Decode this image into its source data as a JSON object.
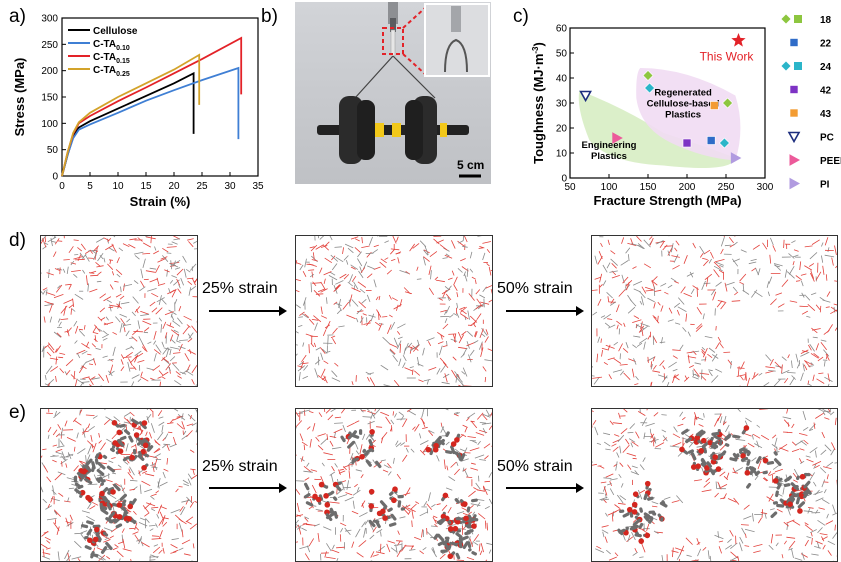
{
  "panel_labels": {
    "a": "a)",
    "b": "b)",
    "c": "c)",
    "d": "d)",
    "e": "e)"
  },
  "chart_data": [
    {
      "type": "line",
      "panel": "a",
      "xlabel": "Strain (%)",
      "ylabel": "Stress (MPa)",
      "xlim": [
        0,
        35
      ],
      "ylim": [
        0,
        300
      ],
      "xticks": [
        "0",
        "5",
        "10",
        "15",
        "20",
        "25",
        "30",
        "35"
      ],
      "yticks": [
        "0",
        "50",
        "100",
        "150",
        "200",
        "250",
        "300"
      ],
      "legend_position": "top-left",
      "series": [
        {
          "name": "Cellulose",
          "color": "#000000",
          "points": [
            [
              0,
              0
            ],
            [
              1,
              40
            ],
            [
              2,
              75
            ],
            [
              3,
              92
            ],
            [
              5,
              104
            ],
            [
              10,
              128
            ],
            [
              15,
              152
            ],
            [
              20,
              176
            ],
            [
              23.5,
              195
            ],
            [
              23.5,
              80
            ]
          ]
        },
        {
          "name": "C-TA",
          "subscript": "0.10",
          "color": "#3f7fd4",
          "points": [
            [
              0,
              0
            ],
            [
              1,
              40
            ],
            [
              2,
              72
            ],
            [
              3,
              88
            ],
            [
              5,
              98
            ],
            [
              10,
              120
            ],
            [
              15,
              143
            ],
            [
              20,
              163
            ],
            [
              25,
              182
            ],
            [
              31.5,
              205
            ],
            [
              31.5,
              70
            ]
          ]
        },
        {
          "name": "C-TA",
          "subscript": "0.15",
          "color": "#e32228",
          "points": [
            [
              0,
              0
            ],
            [
              1,
              45
            ],
            [
              2,
              80
            ],
            [
              3,
              100
            ],
            [
              5,
              114
            ],
            [
              10,
              142
            ],
            [
              15,
              168
            ],
            [
              20,
              195
            ],
            [
              25,
              222
            ],
            [
              32,
              262
            ],
            [
              32,
              155
            ]
          ]
        },
        {
          "name": "C-TA",
          "subscript": "0.25",
          "color": "#d3a32a",
          "points": [
            [
              0,
              0
            ],
            [
              1,
              45
            ],
            [
              2,
              82
            ],
            [
              3,
              102
            ],
            [
              5,
              120
            ],
            [
              10,
              150
            ],
            [
              15,
              176
            ],
            [
              20,
              202
            ],
            [
              24.5,
              230
            ],
            [
              24.5,
              135
            ]
          ]
        }
      ]
    },
    {
      "type": "scatter",
      "panel": "c",
      "xlabel": "Fracture Strength (MPa)",
      "ylabel": "Toughness (MJ·m",
      "ylabel_sup": "-3",
      "ylabel_end": ")",
      "xlim": [
        50,
        300
      ],
      "ylim": [
        0,
        60
      ],
      "xticks": [
        "50",
        "100",
        "150",
        "200",
        "250",
        "300"
      ],
      "yticks": [
        "0",
        "10",
        "20",
        "30",
        "40",
        "50",
        "60"
      ],
      "region_labels": [
        {
          "lines": [
            "Regenerated",
            "Cellulose-based",
            "Plastics"
          ]
        },
        {
          "lines": [
            "Engineering",
            "Plastics"
          ]
        }
      ],
      "highlight": {
        "label": "This Work",
        "x": 266,
        "y": 55,
        "color": "#e32228"
      },
      "points": [
        {
          "x": 150,
          "y": 41,
          "group": "18"
        },
        {
          "x": 252,
          "y": 30,
          "group": "18"
        },
        {
          "x": 152,
          "y": 36,
          "group": "24"
        },
        {
          "x": 248,
          "y": 14,
          "group": "24"
        },
        {
          "x": 231,
          "y": 15,
          "group": "22"
        },
        {
          "x": 200,
          "y": 14,
          "group": "42"
        },
        {
          "x": 235,
          "y": 29,
          "group": "43"
        },
        {
          "x": 70,
          "y": 33,
          "group": "PC"
        },
        {
          "x": 110,
          "y": 16,
          "group": "PEEK"
        },
        {
          "x": 262,
          "y": 8,
          "group": "PI"
        }
      ],
      "legend": [
        {
          "label": "18",
          "icon": "diamond-square-green"
        },
        {
          "label": "22",
          "icon": "square-blue"
        },
        {
          "label": "24",
          "icon": "diamond-square-cyan"
        },
        {
          "label": "42",
          "icon": "square-purple"
        },
        {
          "label": "43",
          "icon": "square-orange"
        },
        {
          "label": "PC",
          "icon": "triangle-down-navy"
        },
        {
          "label": "PEEK",
          "icon": "triangle-right-pink"
        },
        {
          "label": "PI",
          "icon": "triangle-right-lavender"
        }
      ]
    }
  ],
  "photo": {
    "scale_bar": "5 cm"
  },
  "md": {
    "arrow1": "25% strain",
    "arrow2": "50% strain"
  }
}
